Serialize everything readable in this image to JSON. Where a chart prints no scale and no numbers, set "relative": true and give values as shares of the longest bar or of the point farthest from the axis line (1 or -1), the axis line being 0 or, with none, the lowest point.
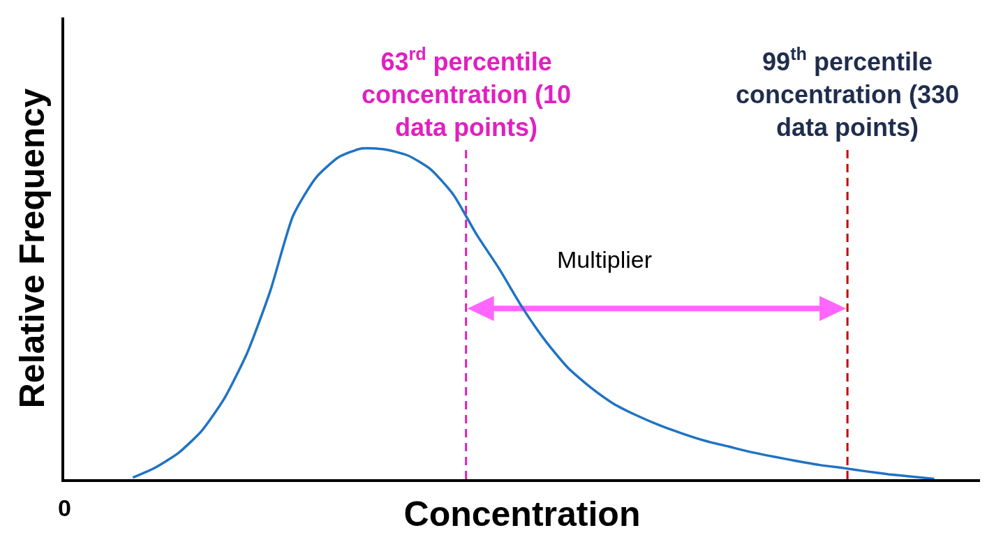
{
  "chart_data": {
    "type": "line",
    "relative": true,
    "xlabel": "Concentration",
    "ylabel": "Relative Frequency",
    "categories": [
      null,
      null,
      null,
      null,
      null,
      null,
      null,
      null,
      null,
      null,
      null,
      null,
      null,
      null,
      null,
      null,
      null,
      null,
      null,
      null,
      null,
      null,
      null,
      null,
      null,
      null,
      null,
      null,
      null,
      null,
      null,
      null,
      null,
      null,
      null,
      null,
      null,
      null,
      null,
      null,
      null
    ],
    "series": [
      {
        "color": "#1f73c4",
        "values": [
          null,
          null,
          null,
          0.005,
          0.036,
          0.08,
          0.146,
          0.245,
          0.383,
          0.569,
          0.797,
          0.912,
          0.974,
          1,
          0.997,
          0.979,
          0.937,
          0.86,
          0.741,
          0.636,
          0.52,
          0.42,
          0.337,
          0.277,
          0.228,
          0.193,
          0.163,
          0.138,
          0.116,
          0.099,
          0.082,
          0.068,
          0.055,
          0.043,
          0.034,
          0.024,
          0.015,
          0.008,
          0.001,
          null,
          null
        ]
      }
    ],
    "annotations": [
      "63$^{rd}$ percentile concentration (10 data points)",
      "99$^{th}$ percentile concentration (330 data points)",
      "Multiplier",
      "0"
    ],
    "marker": "none",
    "line_style": "solid",
    "grid": false
  }
}
